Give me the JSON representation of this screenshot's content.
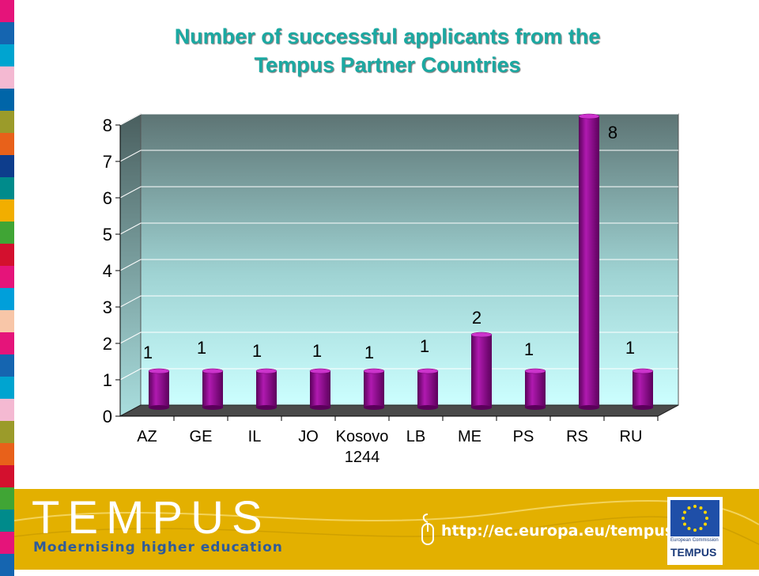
{
  "title_lines": [
    "Number of successful applicants from the",
    "Tempus Partner Countries"
  ],
  "chart_data": {
    "type": "bar",
    "categories": [
      "AZ",
      "GE",
      "IL",
      "JO",
      "Kosovo\n1244",
      "LB",
      "ME",
      "PS",
      "RS",
      "RU"
    ],
    "values": [
      1,
      1,
      1,
      1,
      1,
      1,
      2,
      1,
      8,
      1
    ],
    "ylim": [
      0,
      8
    ],
    "yticks": [
      "0",
      "1",
      "2",
      "3",
      "4",
      "5",
      "6",
      "7",
      "8"
    ],
    "grid": true,
    "legend": "none",
    "bar_color": "#8a0a8a"
  },
  "footer": {
    "brand": "TEMPUS",
    "tagline": "Modernising higher education",
    "url": "http://ec.europa.eu/tempus",
    "eu_logo_caption": "European Commission",
    "eu_logo_word": "TEMPUS"
  },
  "colors": {
    "title": "#1ba9a2",
    "footer_bg": "#e3b000",
    "bar": "#8a0a8a",
    "stripe": [
      "#e5147a",
      "#1565b0",
      "#00a4d0",
      "#f4b9d2",
      "#0065a8",
      "#9b9b2a",
      "#e8611a",
      "#0d3d8c",
      "#008b8b",
      "#f2ae00",
      "#40a535",
      "#d3102e",
      "#e5147a",
      "#009fda",
      "#f8c6a8",
      "#e5147a",
      "#1565b0",
      "#00a4d0",
      "#f4b9d2",
      "#9b9b2a",
      "#e8611a",
      "#d3102e",
      "#40a535",
      "#008b8b",
      "#e5147a",
      "#1565b0"
    ]
  }
}
